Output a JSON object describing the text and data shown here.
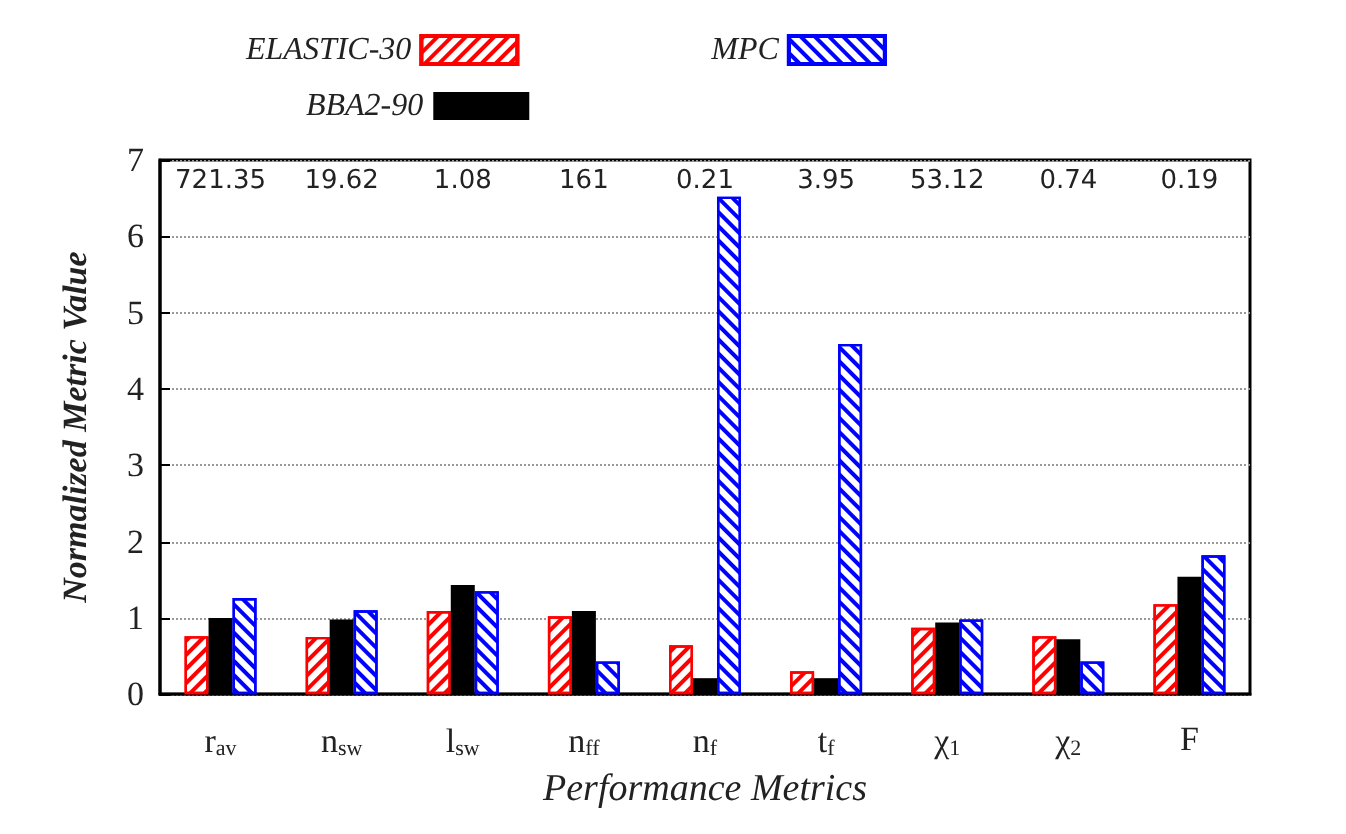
{
  "chart_data": {
    "type": "bar",
    "xlabel": "Performance Metrics",
    "ylabel": "Normalized Metric Value",
    "categories": [
      "r$_{av}$",
      "n$_{sw}$",
      "l$_{sw}$",
      "n$_{ff}$",
      "n$_{f}$",
      "t$_{f}$",
      "χ$_{1}$",
      "χ$_{2}$",
      "F"
    ],
    "series": [
      {
        "name": "ELASTIC-30",
        "color": "#ff0000",
        "values": [
          0.76,
          0.75,
          1.09,
          1.02,
          0.64,
          0.3,
          0.87,
          0.76,
          1.18
        ]
      },
      {
        "name": "BBA2-90",
        "color": "#000000",
        "values": [
          1.0,
          0.98,
          1.43,
          1.09,
          0.21,
          0.21,
          0.94,
          0.72,
          1.54
        ]
      },
      {
        "name": "MPC",
        "color": "#0000ff",
        "values": [
          1.26,
          1.1,
          1.35,
          0.43,
          6.52,
          4.59,
          0.98,
          0.43,
          1.82
        ]
      }
    ],
    "ylim": [
      0,
      7
    ],
    "yticks": [
      0,
      1,
      2,
      3,
      4,
      5,
      6,
      7
    ],
    "grid": "y",
    "legend": "top",
    "annotations": [
      "721.35",
      "19.62",
      "1.08",
      "161",
      "0.21",
      "3.95",
      "53.12",
      "0.74",
      "0.19"
    ]
  }
}
